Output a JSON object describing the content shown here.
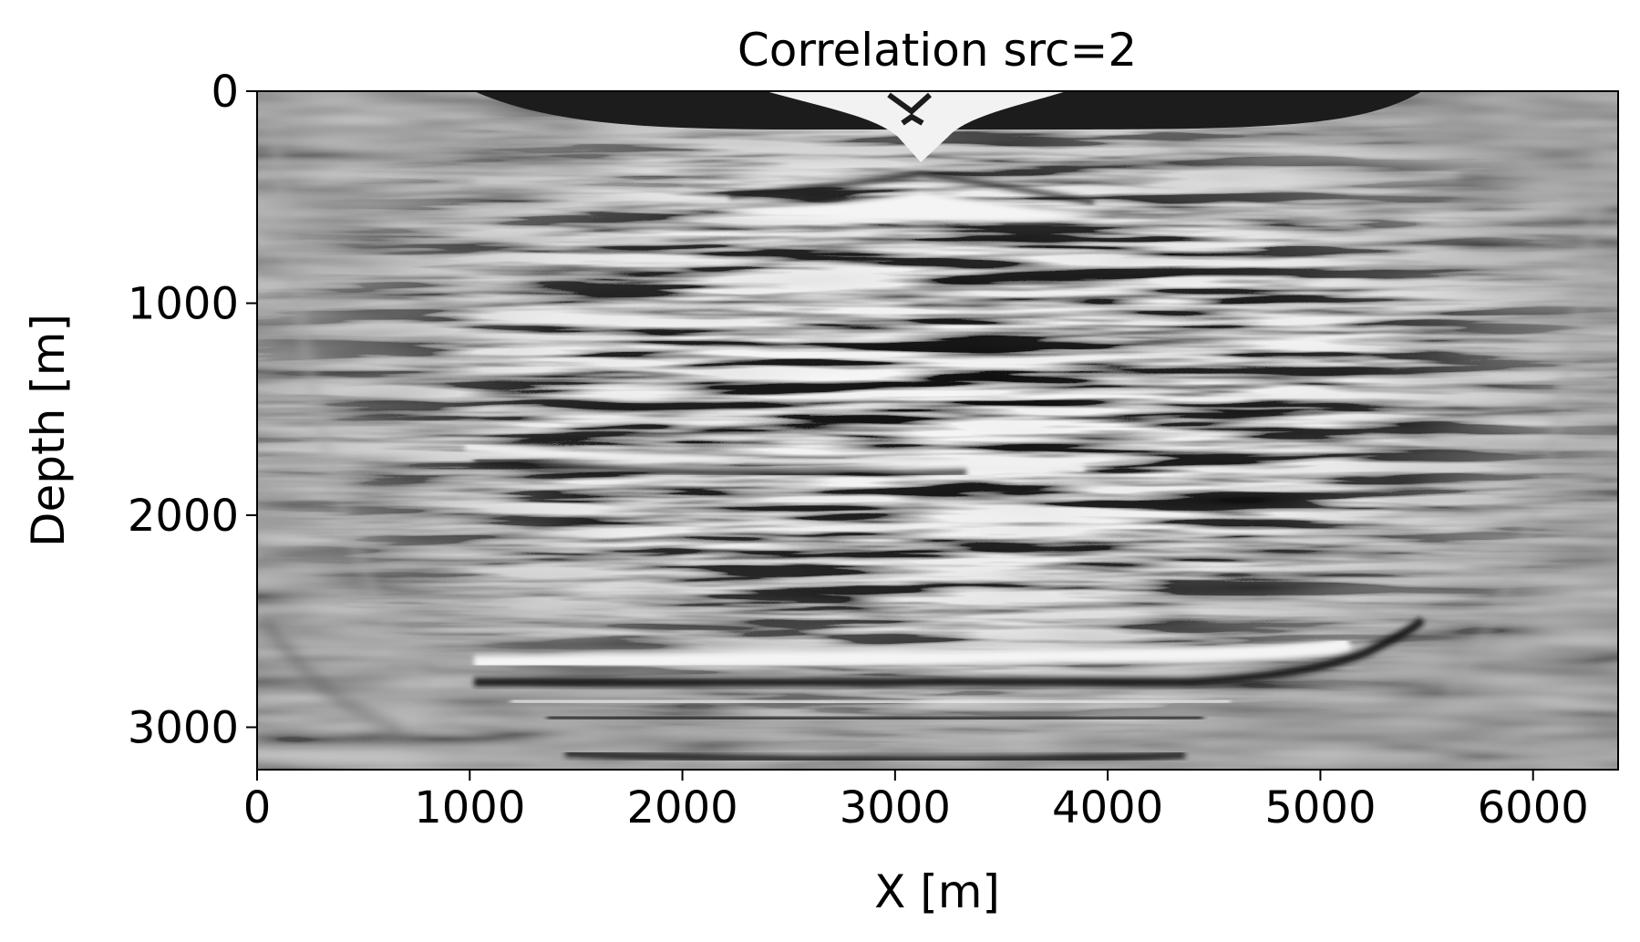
{
  "chart_data": {
    "type": "heatmap",
    "title": "Correlation src=2",
    "xlabel": "X [m]",
    "ylabel": "Depth [m]",
    "xlim": [
      0,
      6400
    ],
    "ylim": [
      3200,
      0
    ],
    "x_ticks": [
      0,
      1000,
      2000,
      3000,
      4000,
      5000,
      6000
    ],
    "x_tick_labels": [
      "0",
      "1000",
      "2000",
      "3000",
      "4000",
      "5000",
      "6000"
    ],
    "y_ticks": [
      0,
      1000,
      2000,
      3000
    ],
    "y_tick_labels": [
      "0",
      "1000",
      "2000",
      "3000"
    ],
    "colormap": "gray",
    "grid": false,
    "features": {
      "source_x": 3050,
      "near_surface_band_depth": [
        0,
        180
      ],
      "shallow_reflector_depth": 560,
      "mid_reflector_depth": 1720,
      "deep_reflector_depth": 2700,
      "deep_reflector_x_range": [
        1000,
        5300
      ]
    }
  }
}
